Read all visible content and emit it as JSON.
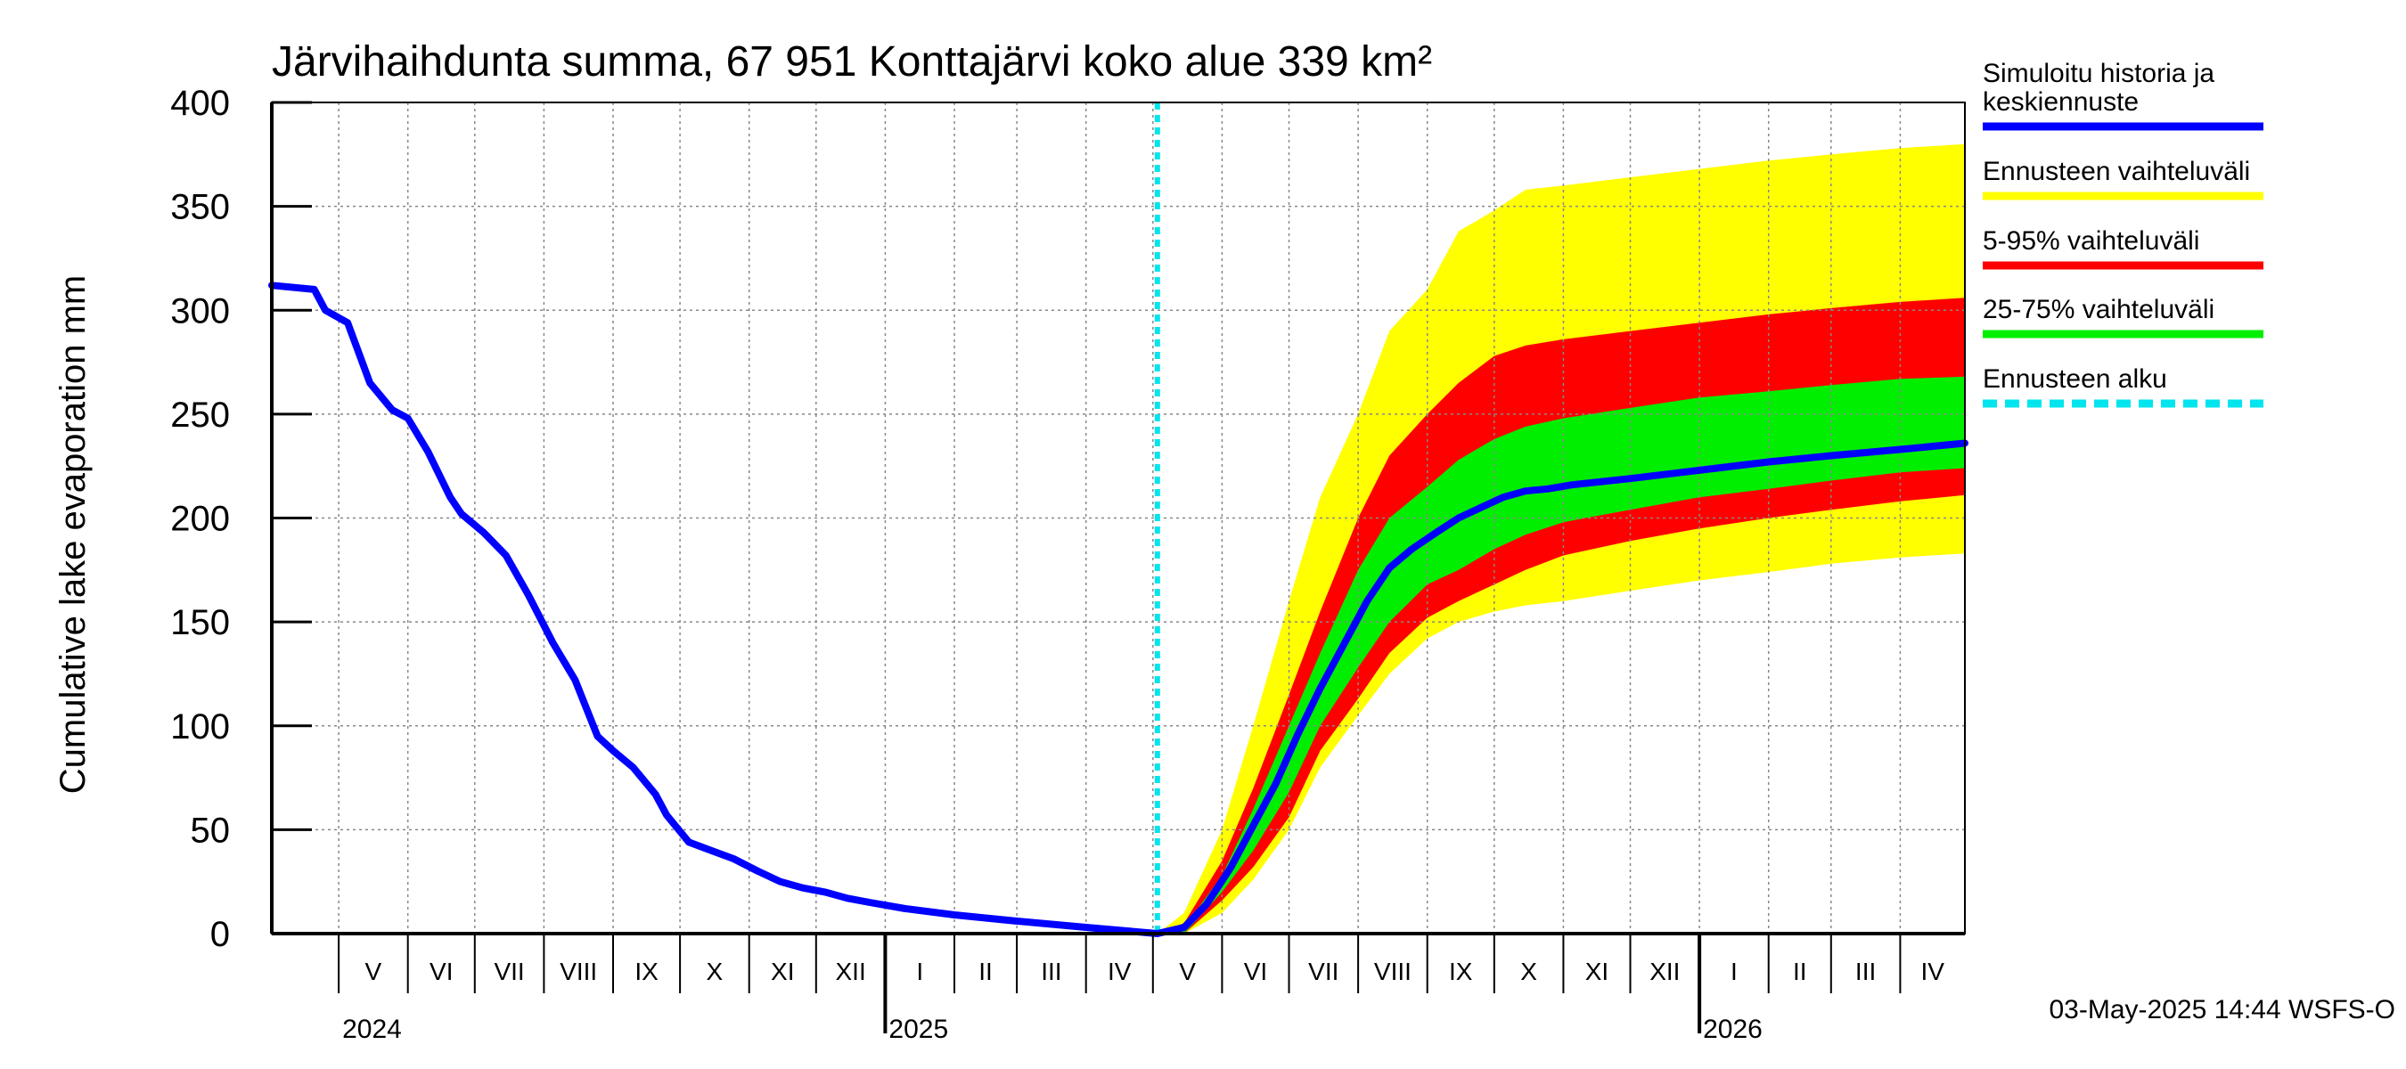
{
  "chart_data": {
    "type": "area",
    "title": "Järvihaihdunta summa, 67 951 Konttajärvi koko alue 339 km²",
    "ylabel": "Cumulative lake evaporation   mm",
    "ylim": [
      0,
      400
    ],
    "yticks": [
      0,
      50,
      100,
      150,
      200,
      250,
      300,
      350,
      400
    ],
    "x_range": [
      "2024-04-01",
      "2026-04-30"
    ],
    "forecast_start": "2025-05-03",
    "grid": true,
    "legend_position": "right",
    "months": [
      {
        "label": "V",
        "date": "2024-05-01"
      },
      {
        "label": "VI",
        "date": "2024-06-01"
      },
      {
        "label": "VII",
        "date": "2024-07-01"
      },
      {
        "label": "VIII",
        "date": "2024-08-01"
      },
      {
        "label": "IX",
        "date": "2024-09-01"
      },
      {
        "label": "X",
        "date": "2024-10-01"
      },
      {
        "label": "XI",
        "date": "2024-11-01"
      },
      {
        "label": "XII",
        "date": "2024-12-01"
      },
      {
        "label": "I",
        "date": "2025-01-01"
      },
      {
        "label": "II",
        "date": "2025-02-01"
      },
      {
        "label": "III",
        "date": "2025-03-01"
      },
      {
        "label": "IV",
        "date": "2025-04-01"
      },
      {
        "label": "V",
        "date": "2025-05-01"
      },
      {
        "label": "VI",
        "date": "2025-06-01"
      },
      {
        "label": "VII",
        "date": "2025-07-01"
      },
      {
        "label": "VIII",
        "date": "2025-08-01"
      },
      {
        "label": "IX",
        "date": "2025-09-01"
      },
      {
        "label": "X",
        "date": "2025-10-01"
      },
      {
        "label": "XI",
        "date": "2025-11-01"
      },
      {
        "label": "XII",
        "date": "2025-12-01"
      },
      {
        "label": "I",
        "date": "2026-01-01"
      },
      {
        "label": "II",
        "date": "2026-02-01"
      },
      {
        "label": "III",
        "date": "2026-03-01"
      },
      {
        "label": "IV",
        "date": "2026-04-01"
      }
    ],
    "years": [
      {
        "label": "2024",
        "date": "2024-05-01"
      },
      {
        "label": "2025",
        "date": "2025-01-01"
      },
      {
        "label": "2026",
        "date": "2026-01-01"
      }
    ],
    "series": [
      {
        "name": "Simuloitu historia ja keskiennuste",
        "color": "#0000ff",
        "points": [
          [
            "2024-04-01",
            312
          ],
          [
            "2024-04-20",
            310
          ],
          [
            "2024-04-25",
            300
          ],
          [
            "2024-05-05",
            294
          ],
          [
            "2024-05-15",
            265
          ],
          [
            "2024-05-25",
            252
          ],
          [
            "2024-06-01",
            248
          ],
          [
            "2024-06-10",
            232
          ],
          [
            "2024-06-20",
            210
          ],
          [
            "2024-06-25",
            202
          ],
          [
            "2024-07-05",
            193
          ],
          [
            "2024-07-15",
            182
          ],
          [
            "2024-07-25",
            163
          ],
          [
            "2024-08-05",
            140
          ],
          [
            "2024-08-15",
            122
          ],
          [
            "2024-08-25",
            95
          ],
          [
            "2024-09-01",
            88
          ],
          [
            "2024-09-10",
            80
          ],
          [
            "2024-09-20",
            67
          ],
          [
            "2024-09-25",
            57
          ],
          [
            "2024-10-05",
            44
          ],
          [
            "2024-10-15",
            40
          ],
          [
            "2024-10-25",
            36
          ],
          [
            "2024-11-05",
            30
          ],
          [
            "2024-11-15",
            25
          ],
          [
            "2024-11-25",
            22
          ],
          [
            "2024-12-05",
            20
          ],
          [
            "2024-12-15",
            17
          ],
          [
            "2024-12-25",
            15
          ],
          [
            "2025-01-10",
            12
          ],
          [
            "2025-02-01",
            9
          ],
          [
            "2025-03-01",
            6
          ],
          [
            "2025-04-01",
            3
          ],
          [
            "2025-05-03",
            0
          ],
          [
            "2025-05-15",
            3
          ],
          [
            "2025-05-25",
            14
          ],
          [
            "2025-06-05",
            32
          ],
          [
            "2025-06-15",
            52
          ],
          [
            "2025-06-25",
            72
          ],
          [
            "2025-07-05",
            96
          ],
          [
            "2025-07-15",
            118
          ],
          [
            "2025-07-25",
            138
          ],
          [
            "2025-08-05",
            160
          ],
          [
            "2025-08-15",
            176
          ],
          [
            "2025-08-25",
            185
          ],
          [
            "2025-09-05",
            193
          ],
          [
            "2025-09-15",
            200
          ],
          [
            "2025-09-25",
            205
          ],
          [
            "2025-10-05",
            210
          ],
          [
            "2025-10-15",
            213
          ],
          [
            "2025-10-25",
            214
          ],
          [
            "2025-11-05",
            216
          ],
          [
            "2025-12-01",
            219
          ],
          [
            "2026-01-01",
            223
          ],
          [
            "2026-02-01",
            227
          ],
          [
            "2026-03-01",
            230
          ],
          [
            "2026-04-01",
            233
          ],
          [
            "2026-04-30",
            236
          ]
        ]
      },
      {
        "name": "Ennusteen vaihteluväli",
        "color": "#ffff00",
        "band": [
          [
            "2025-05-03",
            0,
            0
          ],
          [
            "2025-05-15",
            0,
            10
          ],
          [
            "2025-06-01",
            10,
            50
          ],
          [
            "2025-06-15",
            26,
            100
          ],
          [
            "2025-07-01",
            50,
            160
          ],
          [
            "2025-07-15",
            80,
            210
          ],
          [
            "2025-08-01",
            105,
            250
          ],
          [
            "2025-08-15",
            125,
            290
          ],
          [
            "2025-09-01",
            142,
            310
          ],
          [
            "2025-09-15",
            150,
            338
          ],
          [
            "2025-10-01",
            155,
            348
          ],
          [
            "2025-10-15",
            158,
            358
          ],
          [
            "2025-11-01",
            160,
            360
          ],
          [
            "2025-12-01",
            165,
            364
          ],
          [
            "2026-01-01",
            170,
            368
          ],
          [
            "2026-02-01",
            174,
            372
          ],
          [
            "2026-03-01",
            178,
            375
          ],
          [
            "2026-04-01",
            181,
            378
          ],
          [
            "2026-04-30",
            183,
            380
          ]
        ]
      },
      {
        "name": "5-95% vaihteluväli",
        "color": "#ff0000",
        "band": [
          [
            "2025-05-03",
            0,
            0
          ],
          [
            "2025-05-15",
            0,
            5
          ],
          [
            "2025-06-01",
            16,
            35
          ],
          [
            "2025-06-15",
            32,
            70
          ],
          [
            "2025-07-01",
            56,
            115
          ],
          [
            "2025-07-15",
            88,
            155
          ],
          [
            "2025-08-01",
            113,
            200
          ],
          [
            "2025-08-15",
            135,
            230
          ],
          [
            "2025-09-01",
            152,
            250
          ],
          [
            "2025-09-15",
            160,
            265
          ],
          [
            "2025-10-01",
            168,
            278
          ],
          [
            "2025-10-15",
            175,
            283
          ],
          [
            "2025-11-01",
            182,
            286
          ],
          [
            "2025-12-01",
            189,
            290
          ],
          [
            "2026-01-01",
            195,
            294
          ],
          [
            "2026-02-01",
            200,
            298
          ],
          [
            "2026-03-01",
            204,
            301
          ],
          [
            "2026-04-01",
            208,
            304
          ],
          [
            "2026-04-30",
            211,
            306
          ]
        ]
      },
      {
        "name": "25-75% vaihteluväli",
        "color": "#00ee00",
        "band": [
          [
            "2025-05-03",
            0,
            0
          ],
          [
            "2025-05-15",
            0,
            3
          ],
          [
            "2025-06-01",
            20,
            28
          ],
          [
            "2025-06-15",
            40,
            60
          ],
          [
            "2025-07-01",
            68,
            100
          ],
          [
            "2025-07-15",
            100,
            135
          ],
          [
            "2025-08-01",
            128,
            175
          ],
          [
            "2025-08-15",
            150,
            200
          ],
          [
            "2025-09-01",
            168,
            215
          ],
          [
            "2025-09-15",
            175,
            228
          ],
          [
            "2025-10-01",
            185,
            238
          ],
          [
            "2025-10-15",
            192,
            244
          ],
          [
            "2025-11-01",
            198,
            248
          ],
          [
            "2025-12-01",
            204,
            253
          ],
          [
            "2026-01-01",
            210,
            258
          ],
          [
            "2026-02-01",
            214,
            261
          ],
          [
            "2026-03-01",
            218,
            264
          ],
          [
            "2026-04-01",
            222,
            267
          ],
          [
            "2026-04-30",
            224,
            268
          ]
        ]
      },
      {
        "name": "Ennusteen alku",
        "color": "#00e5ee",
        "style": "dotted"
      }
    ]
  },
  "footer": {
    "timestamp": "03-May-2025 14:44 WSFS-O"
  }
}
